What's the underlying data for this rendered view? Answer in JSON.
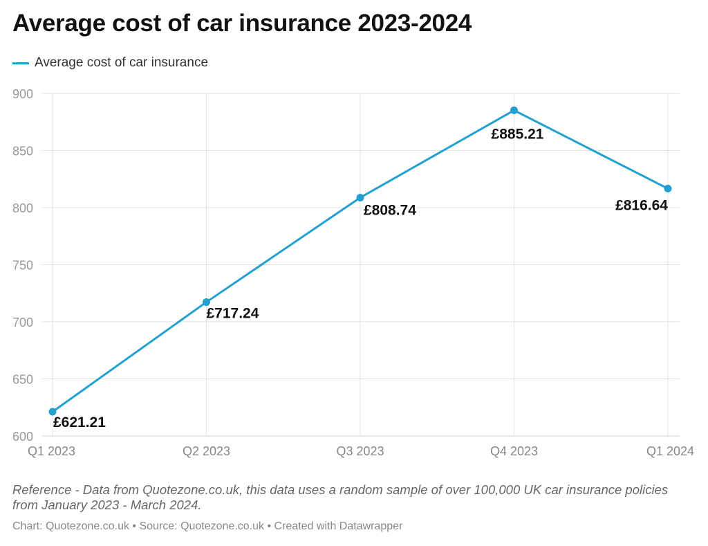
{
  "title": "Average cost of car insurance 2023-2024",
  "colors": {
    "line": "#22a0d0",
    "grid": "#e2e2e2",
    "tick": "#999999",
    "label": "#111111"
  },
  "chart_data": {
    "type": "line",
    "categories": [
      "Q1 2023",
      "Q2 2023",
      "Q3 2023",
      "Q4 2023",
      "Q1 2024"
    ],
    "series": [
      {
        "name": "Average cost of car insurance",
        "values": [
          621.21,
          717.24,
          808.74,
          885.21,
          816.64
        ]
      }
    ],
    "data_labels": [
      "£621.21",
      "£717.24",
      "£808.74",
      "£885.21",
      "£816.64"
    ],
    "ylim": [
      600,
      900
    ],
    "yticks": [
      600,
      650,
      700,
      750,
      800,
      850,
      900
    ],
    "ytick_labels": [
      "600",
      "650",
      "700",
      "750",
      "800",
      "850",
      "900"
    ],
    "legend": "top-left",
    "grid": true
  },
  "note": "Reference - Data from Quotezone.co.uk, this data uses a random sample of over 100,000 UK car insurance policies from January 2023 - March 2024.",
  "footer": "Chart: Quotezone.co.uk • Source: Quotezone.co.uk • Created with Datawrapper"
}
